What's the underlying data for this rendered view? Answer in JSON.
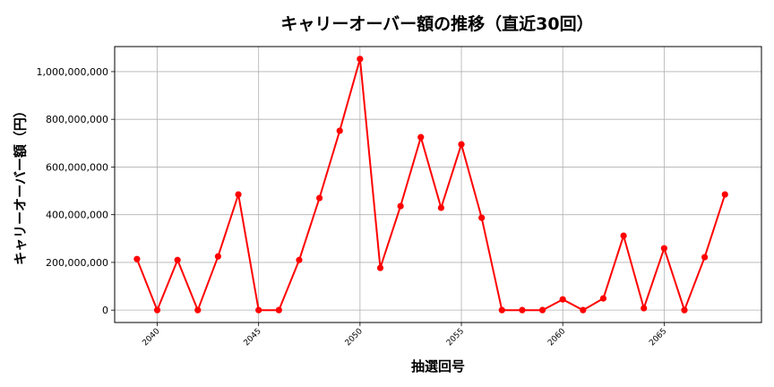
{
  "chart_data": {
    "type": "line",
    "title": "キャリーオーバー額の推移（直近30回）",
    "xlabel": "抽選回号",
    "ylabel": "キャリーオーバー額（円）",
    "x": [
      2039,
      2040,
      2041,
      2042,
      2043,
      2044,
      2045,
      2046,
      2047,
      2048,
      2049,
      2050,
      2051,
      2052,
      2053,
      2054,
      2055,
      2056,
      2057,
      2058,
      2059,
      2060,
      2061,
      2062,
      2063,
      2064,
      2065,
      2066,
      2067,
      2068
    ],
    "series": [
      {
        "name": "キャリーオーバー額",
        "color": "#ff0000",
        "marker": "circle",
        "values": [
          214000000,
          0,
          210000000,
          0,
          225000000,
          485000000,
          0,
          0,
          210000000,
          470000000,
          752000000,
          1053000000,
          177000000,
          436000000,
          725000000,
          429000000,
          695000000,
          387000000,
          0,
          0,
          0,
          45000000,
          0,
          49000000,
          312000000,
          8000000,
          259000000,
          0,
          222000000,
          485000000
        ]
      }
    ],
    "xticks": [
      2040,
      2045,
      2050,
      2055,
      2060,
      2065
    ],
    "yticks": [
      0,
      200000000,
      400000000,
      600000000,
      800000000,
      1000000000
    ],
    "ytick_labels": [
      "0",
      "200,000,000",
      "400,000,000",
      "600,000,000",
      "800,000,000",
      "1,000,000,000"
    ],
    "xlim": [
      2037.9,
      2069.8
    ],
    "ylim": [
      -52000000,
      1105000000
    ],
    "grid": true,
    "legend": "none"
  }
}
